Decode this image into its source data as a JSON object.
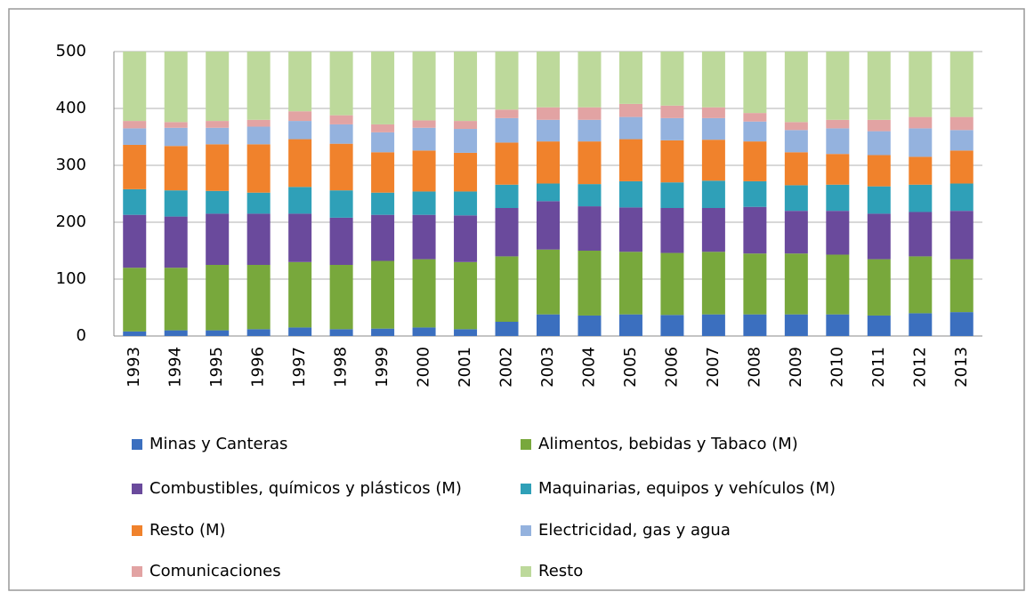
{
  "chart_data": {
    "type": "bar",
    "stacked": true,
    "categories": [
      "1993",
      "1994",
      "1995",
      "1996",
      "1997",
      "1998",
      "1999",
      "2000",
      "2001",
      "2002",
      "2003",
      "2004",
      "2005",
      "2006",
      "2007",
      "2008",
      "2009",
      "2010",
      "2011",
      "2012",
      "2013"
    ],
    "ylim": [
      0,
      500
    ],
    "yticks": [
      0,
      100,
      200,
      300,
      400,
      500
    ],
    "grid": true,
    "series": [
      {
        "name": "Minas y Canteras",
        "color": "#3b6fbf",
        "values": [
          8,
          10,
          10,
          12,
          15,
          12,
          13,
          15,
          12,
          25,
          38,
          36,
          38,
          37,
          38,
          38,
          38,
          38,
          36,
          40,
          42
        ]
      },
      {
        "name": "Alimentos, bebidas y Tabaco (M)",
        "color": "#78a83c",
        "values": [
          112,
          110,
          115,
          113,
          115,
          113,
          119,
          120,
          118,
          115,
          114,
          114,
          110,
          109,
          110,
          107,
          107,
          105,
          99,
          100,
          93
        ]
      },
      {
        "name": "Combustibles, químicos y plásticos (M)",
        "color": "#6a4a9c",
        "values": [
          93,
          90,
          90,
          90,
          85,
          83,
          81,
          78,
          82,
          85,
          85,
          78,
          78,
          79,
          77,
          82,
          75,
          77,
          80,
          78,
          85
        ]
      },
      {
        "name": "Maquinarias, equipos y vehículos (M)",
        "color": "#2fa0b8",
        "values": [
          45,
          46,
          40,
          37,
          47,
          48,
          39,
          41,
          42,
          41,
          31,
          39,
          46,
          45,
          48,
          45,
          45,
          46,
          48,
          48,
          48
        ]
      },
      {
        "name": "Resto (M)",
        "color": "#f0822c",
        "values": [
          78,
          78,
          82,
          85,
          84,
          82,
          71,
          72,
          68,
          74,
          74,
          75,
          74,
          74,
          72,
          70,
          58,
          54,
          55,
          49,
          58
        ]
      },
      {
        "name": "Electricidad, gas y agua",
        "color": "#94b2de",
        "values": [
          29,
          32,
          29,
          31,
          32,
          34,
          35,
          40,
          42,
          43,
          38,
          38,
          39,
          39,
          38,
          35,
          39,
          45,
          42,
          50,
          36
        ]
      },
      {
        "name": "Comunicaciones",
        "color": "#e2a3a3",
        "values": [
          13,
          10,
          12,
          12,
          17,
          16,
          14,
          13,
          14,
          15,
          22,
          22,
          23,
          22,
          19,
          15,
          14,
          15,
          20,
          20,
          23
        ]
      },
      {
        "name": "Resto",
        "color": "#bdd99b",
        "values": [
          122,
          124,
          122,
          120,
          105,
          112,
          128,
          121,
          122,
          102,
          98,
          98,
          92,
          95,
          98,
          108,
          124,
          120,
          120,
          115,
          115
        ]
      }
    ]
  }
}
